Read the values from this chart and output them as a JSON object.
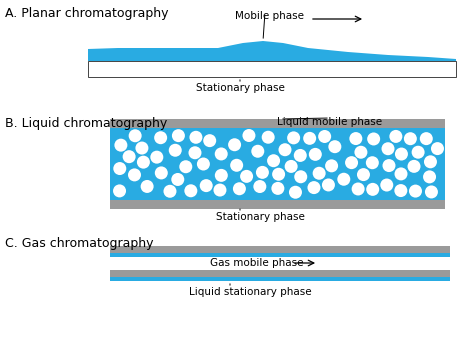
{
  "bg_color": "#ffffff",
  "blue_color": "#29abe2",
  "gray_color": "#9a9a9a",
  "white_color": "#ffffff",
  "text_color": "#000000",
  "section_A_title": "A. Planar chromatography",
  "section_B_title": "B. Liquid chromatography",
  "section_C_title": "C. Gas chromatography",
  "label_mobile_phase": "Mobile phase",
  "label_stationary_A": "Stationary phase",
  "label_liquid_mobile": "Liquid mobile phase",
  "label_stationary_B": "Stationary phase",
  "label_gas_mobile": "Gas mobile phase",
  "label_liquid_stationary": "Liquid stationary phase",
  "figsize": [
    4.74,
    3.45
  ],
  "dpi": 100
}
